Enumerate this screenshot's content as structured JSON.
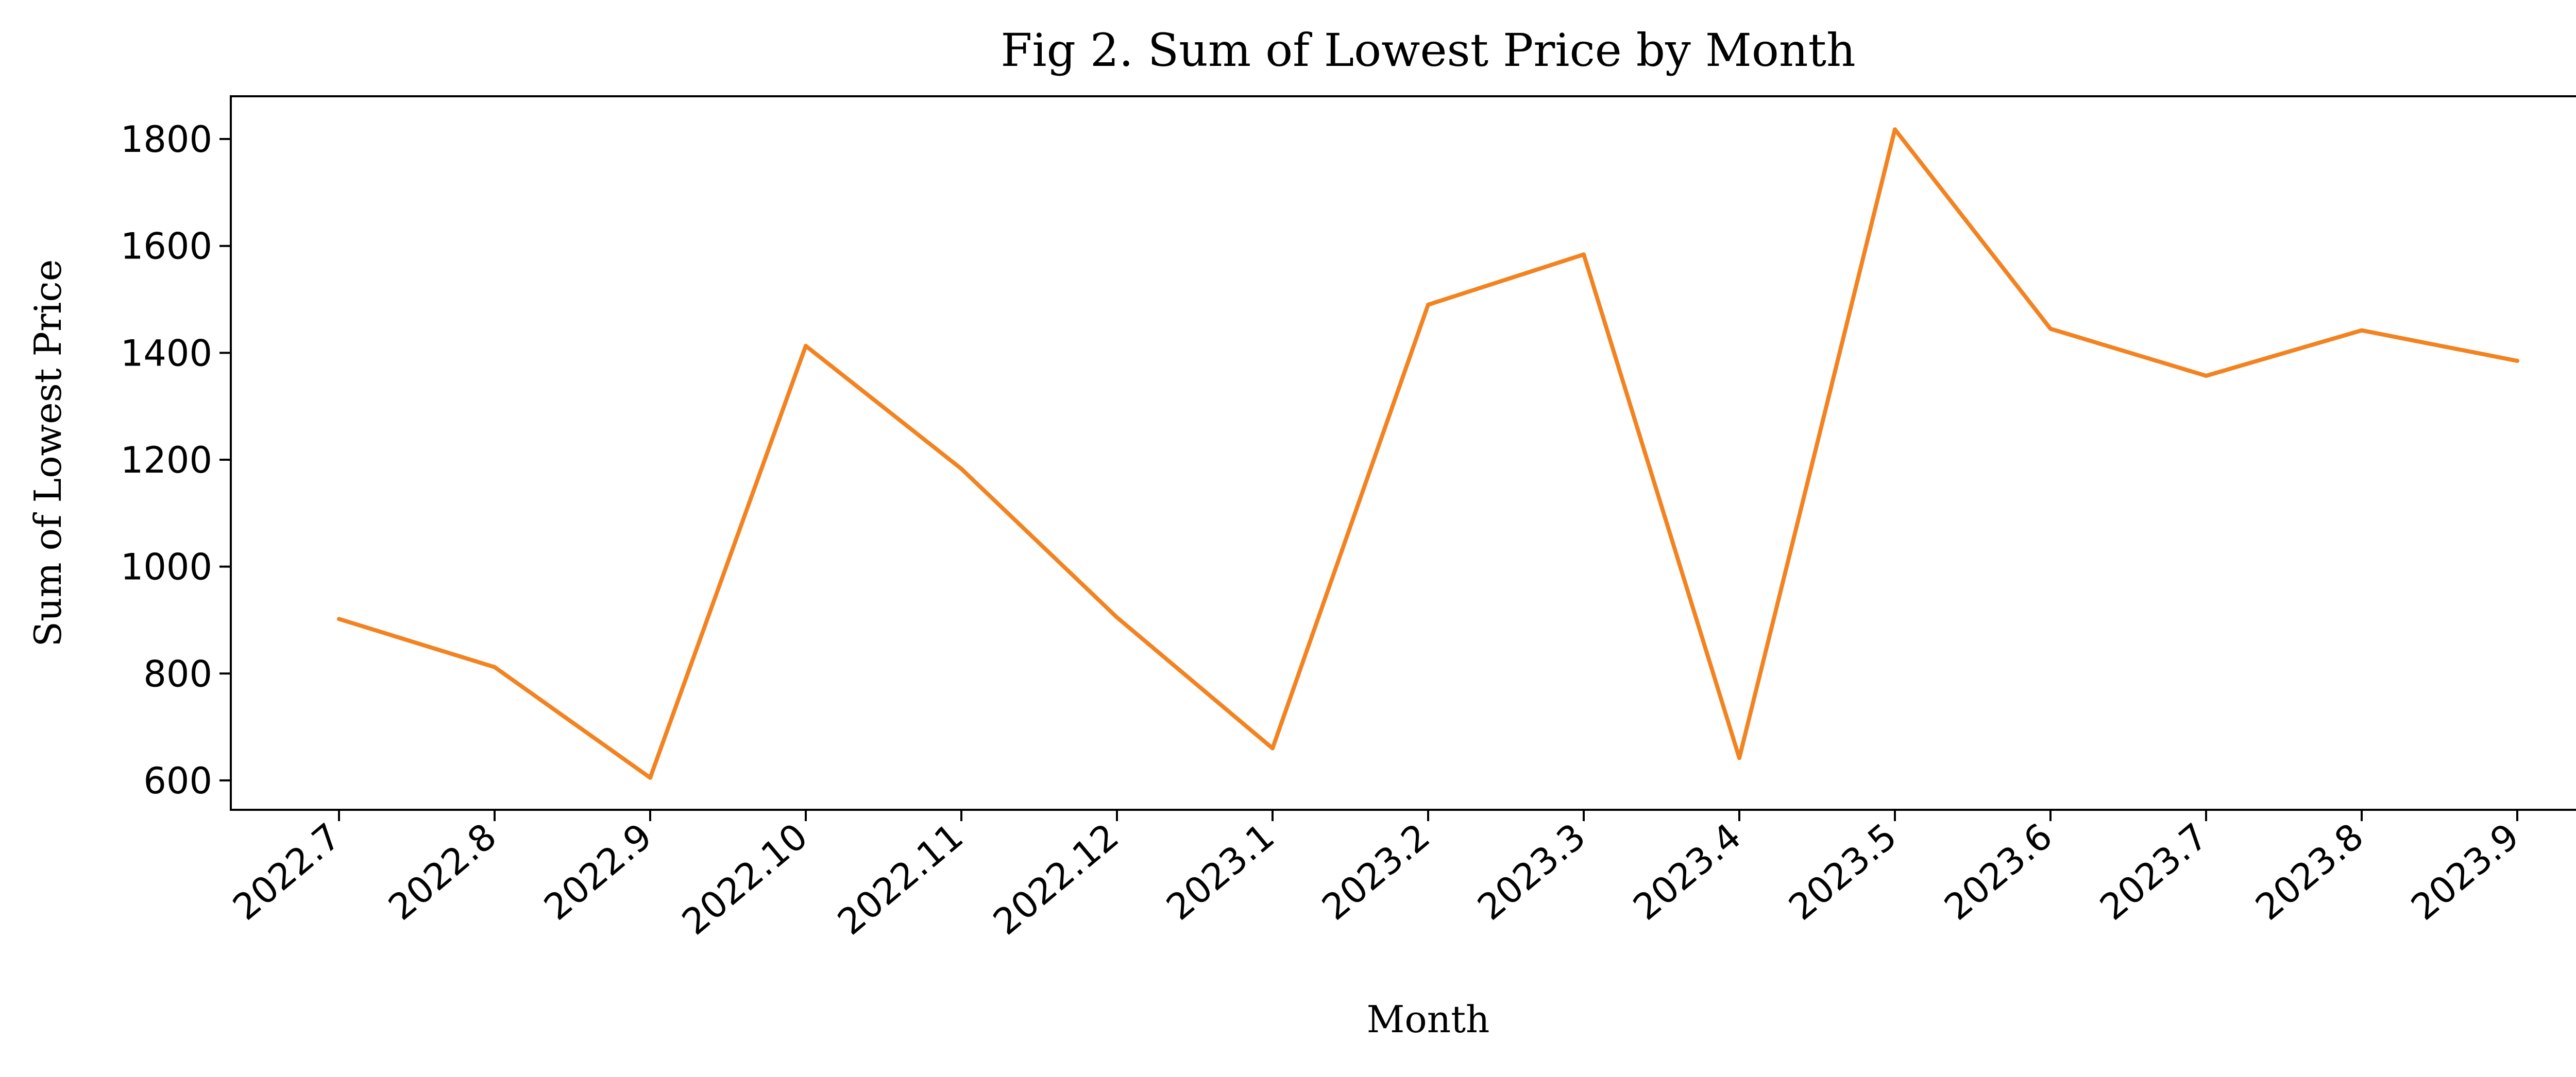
{
  "chart_data": {
    "type": "line",
    "title": "Fig 2. Sum of Lowest Price by Month",
    "xlabel": "Month",
    "ylabel": "Sum of Lowest Price",
    "categories": [
      "2022.7",
      "2022.8",
      "2022.9",
      "2022.10",
      "2022.11",
      "2022.12",
      "2023.1",
      "2023.2",
      "2023.3",
      "2023.4",
      "2023.5",
      "2023.6",
      "2023.7",
      "2023.8",
      "2023.9"
    ],
    "series": [
      {
        "values": [
          902,
          812,
          605,
          1413,
          1183,
          905,
          660,
          1490,
          1584,
          642,
          1818,
          1445,
          1357,
          1442,
          1385
        ]
      }
    ],
    "ylim": [
      545,
      1880
    ],
    "yticks": [
      600,
      800,
      1000,
      1200,
      1400,
      1600,
      1800
    ],
    "grid": false,
    "colors": {
      "line": "#f28320"
    }
  }
}
